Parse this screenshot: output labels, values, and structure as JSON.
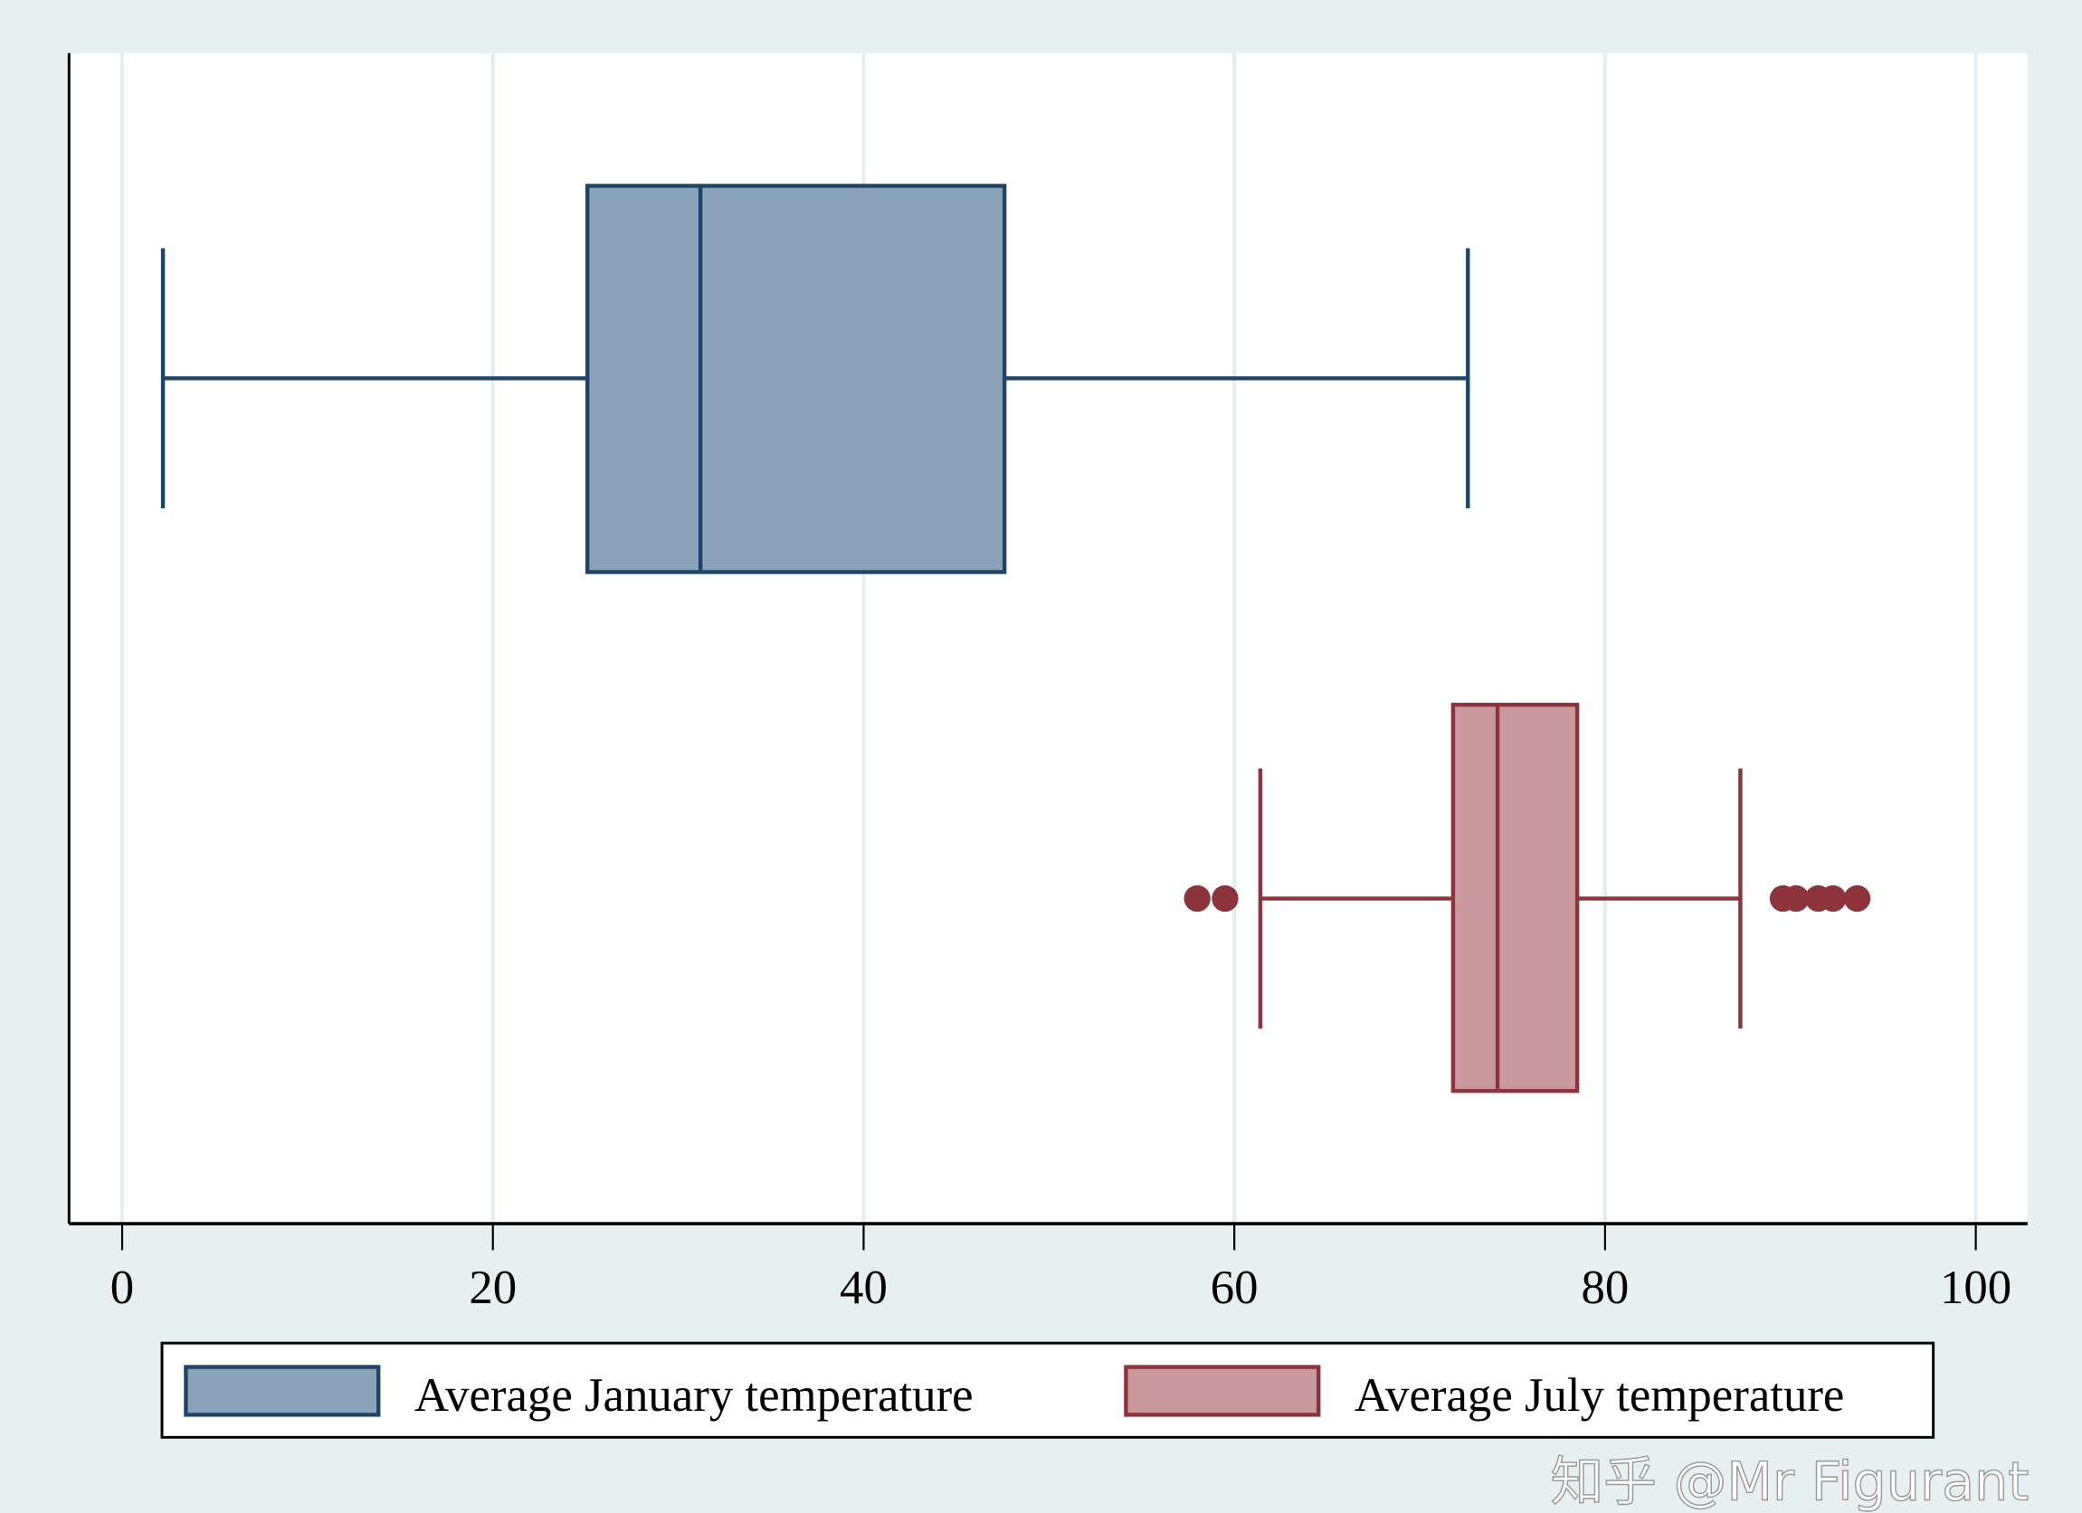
{
  "chart_data": {
    "type": "boxplot",
    "orientation": "horizontal",
    "title": "",
    "xlabel": "",
    "ylabel": "",
    "xlim": [
      -3,
      103
    ],
    "xticks": [
      0,
      20,
      40,
      60,
      80,
      100
    ],
    "xtick_labels": [
      "0",
      "20",
      "40",
      "60",
      "80",
      "100"
    ],
    "grid": true,
    "legend_position": "bottom",
    "series": [
      {
        "name": "Average January temperature",
        "fill": "#8ba3b9",
        "stroke": "#1f4468",
        "whisker_low": 2.2,
        "q1": 25.1,
        "median": 31.2,
        "q3": 47.6,
        "whisker_high": 72.6,
        "outliers": []
      },
      {
        "name": "Average July temperature",
        "fill": "#c9999d",
        "stroke": "#8c333c",
        "whisker_low": 61.4,
        "q1": 71.8,
        "median": 74.2,
        "q3": 78.5,
        "whisker_high": 87.3,
        "outliers": [
          58.0,
          59.5,
          89.6,
          90.3,
          91.5,
          92.3,
          93.6
        ]
      }
    ]
  },
  "watermark": "知乎 @Mr Figurant"
}
